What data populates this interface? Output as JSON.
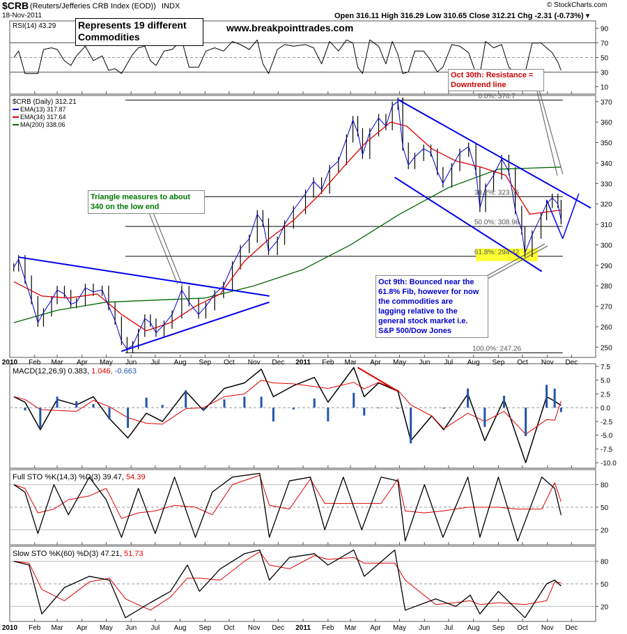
{
  "header": {
    "symbol": "$CRB",
    "name": "(Reuters/Jefferies CRB Index (EOD))",
    "exchange": "INDX",
    "date": "18-Nov-2011",
    "ohlc": "Open 316.11  High 316.29  Low 310.65  Close 312.21  Chg -2.31 (-0.73%) ▾",
    "brand": "© StockCharts.com"
  },
  "annotations": {
    "represents": "Represents 19 different\nCommodities",
    "site": "www.breakpointtrades.com",
    "oct30": "Oct 30th: Resistance =\nDowntrend line",
    "triangle": "Triangle measures to about\n340 on the low end",
    "oct9": "Oct 9th: Bounced near the\n61.8% Fib, however for now\nthe commodities are\nlagging relative to the\ngeneral stock market i.e.\nS&P 500/Dow Jones"
  },
  "colors": {
    "price_bar": "#000000",
    "ema13": "#0000cc",
    "ema34": "#dd0000",
    "ma200": "#006600",
    "trendline": "#0000ee",
    "macd_hist": "#2255aa",
    "fib_highlight": "#ffff33",
    "anno_green": "#007700",
    "anno_red": "#cc0000",
    "anno_blue": "#0000cc"
  },
  "chart_data": [
    {
      "type": "line",
      "panel": "RSI",
      "title": "RSI(14) 43.29",
      "ylim": [
        0,
        100
      ],
      "y_ticks": [
        "90",
        "70",
        "50",
        "30",
        "10"
      ],
      "reference_lines": [
        30,
        50,
        70
      ],
      "last_value": 43.29
    },
    {
      "type": "line",
      "panel": "Price",
      "title": "$CRB (Daily) 312.21",
      "ylim": [
        245,
        373
      ],
      "y_ticks": [
        "370",
        "360",
        "350",
        "340",
        "330",
        "320",
        "310",
        "300",
        "290",
        "280",
        "270",
        "260",
        "250"
      ],
      "x_ticks": [
        "2010",
        "Feb",
        "Mar",
        "Apr",
        "May",
        "Jun",
        "Jul",
        "Aug",
        "Sep",
        "Oct",
        "Nov",
        "Dec",
        "2011",
        "Feb",
        "Mar",
        "Apr",
        "May",
        "Jun",
        "Jul",
        "Aug",
        "Sep",
        "Oct",
        "Nov",
        "Dec"
      ],
      "x_start": "2010-01-01",
      "x_end": "2011-12-31",
      "legend": [
        {
          "name": "EMA(13) 317.87",
          "color": "#0000cc"
        },
        {
          "name": "EMA(34) 317.64",
          "color": "#dd0000"
        },
        {
          "name": "MA(200) 338.06",
          "color": "#006600"
        }
      ],
      "fib_levels": [
        {
          "label": "0.0%: 370.7",
          "value": 370.7
        },
        {
          "label": "38.2%: 323.55",
          "value": 323.55
        },
        {
          "label": "50.0%: 308.98",
          "value": 308.98
        },
        {
          "label": "61.8%: 294.42",
          "value": 294.42
        },
        {
          "label": "100.0%: 247.26",
          "value": 247.26
        }
      ],
      "closes": [
        {
          "x": "2010-01-06",
          "y": 289
        },
        {
          "x": "2010-01-12",
          "y": 293
        },
        {
          "x": "2010-01-20",
          "y": 283
        },
        {
          "x": "2010-01-28",
          "y": 273
        },
        {
          "x": "2010-02-05",
          "y": 262
        },
        {
          "x": "2010-02-12",
          "y": 267
        },
        {
          "x": "2010-02-22",
          "y": 273
        },
        {
          "x": "2010-03-01",
          "y": 278
        },
        {
          "x": "2010-03-10",
          "y": 276
        },
        {
          "x": "2010-03-18",
          "y": 271
        },
        {
          "x": "2010-03-25",
          "y": 272
        },
        {
          "x": "2010-04-05",
          "y": 279
        },
        {
          "x": "2010-04-15",
          "y": 277
        },
        {
          "x": "2010-04-26",
          "y": 278
        },
        {
          "x": "2010-05-04",
          "y": 270
        },
        {
          "x": "2010-05-12",
          "y": 263
        },
        {
          "x": "2010-05-20",
          "y": 253
        },
        {
          "x": "2010-05-27",
          "y": 249
        },
        {
          "x": "2010-06-03",
          "y": 251
        },
        {
          "x": "2010-06-10",
          "y": 257
        },
        {
          "x": "2010-06-18",
          "y": 264
        },
        {
          "x": "2010-06-25",
          "y": 262
        },
        {
          "x": "2010-07-02",
          "y": 257
        },
        {
          "x": "2010-07-12",
          "y": 261
        },
        {
          "x": "2010-07-22",
          "y": 266
        },
        {
          "x": "2010-08-03",
          "y": 278
        },
        {
          "x": "2010-08-12",
          "y": 272
        },
        {
          "x": "2010-08-24",
          "y": 266
        },
        {
          "x": "2010-09-02",
          "y": 270
        },
        {
          "x": "2010-09-13",
          "y": 276
        },
        {
          "x": "2010-09-24",
          "y": 280
        },
        {
          "x": "2010-10-05",
          "y": 290
        },
        {
          "x": "2010-10-15",
          "y": 298
        },
        {
          "x": "2010-10-26",
          "y": 303
        },
        {
          "x": "2010-11-05",
          "y": 315
        },
        {
          "x": "2010-11-12",
          "y": 311
        },
        {
          "x": "2010-11-19",
          "y": 297
        },
        {
          "x": "2010-11-30",
          "y": 302
        },
        {
          "x": "2010-12-09",
          "y": 310
        },
        {
          "x": "2010-12-20",
          "y": 317
        },
        {
          "x": "2011-01-04",
          "y": 325
        },
        {
          "x": "2011-01-14",
          "y": 331
        },
        {
          "x": "2011-01-24",
          "y": 327
        },
        {
          "x": "2011-02-03",
          "y": 337
        },
        {
          "x": "2011-02-14",
          "y": 341
        },
        {
          "x": "2011-02-24",
          "y": 352
        },
        {
          "x": "2011-03-04",
          "y": 361
        },
        {
          "x": "2011-03-10",
          "y": 355
        },
        {
          "x": "2011-03-16",
          "y": 344
        },
        {
          "x": "2011-03-25",
          "y": 355
        },
        {
          "x": "2011-04-05",
          "y": 362
        },
        {
          "x": "2011-04-14",
          "y": 358
        },
        {
          "x": "2011-04-22",
          "y": 368
        },
        {
          "x": "2011-04-29",
          "y": 370
        },
        {
          "x": "2011-05-05",
          "y": 348
        },
        {
          "x": "2011-05-12",
          "y": 339
        },
        {
          "x": "2011-05-20",
          "y": 343
        },
        {
          "x": "2011-05-31",
          "y": 347
        },
        {
          "x": "2011-06-09",
          "y": 345
        },
        {
          "x": "2011-06-17",
          "y": 336
        },
        {
          "x": "2011-06-24",
          "y": 330
        },
        {
          "x": "2011-07-05",
          "y": 338
        },
        {
          "x": "2011-07-15",
          "y": 345
        },
        {
          "x": "2011-07-26",
          "y": 348
        },
        {
          "x": "2011-08-04",
          "y": 336
        },
        {
          "x": "2011-08-09",
          "y": 318
        },
        {
          "x": "2011-08-16",
          "y": 328
        },
        {
          "x": "2011-08-26",
          "y": 334
        },
        {
          "x": "2011-09-05",
          "y": 342
        },
        {
          "x": "2011-09-14",
          "y": 336
        },
        {
          "x": "2011-09-22",
          "y": 317
        },
        {
          "x": "2011-09-30",
          "y": 307
        },
        {
          "x": "2011-10-04",
          "y": 296
        },
        {
          "x": "2011-10-13",
          "y": 305
        },
        {
          "x": "2011-10-24",
          "y": 314
        },
        {
          "x": "2011-10-31",
          "y": 320
        },
        {
          "x": "2011-11-07",
          "y": 323
        },
        {
          "x": "2011-11-14",
          "y": 320
        },
        {
          "x": "2011-11-18",
          "y": 312
        }
      ],
      "ema34": [
        {
          "x": "2010-01-06",
          "y": 282
        },
        {
          "x": "2010-02-10",
          "y": 275
        },
        {
          "x": "2010-03-15",
          "y": 274
        },
        {
          "x": "2010-04-20",
          "y": 276
        },
        {
          "x": "2010-05-20",
          "y": 266
        },
        {
          "x": "2010-06-20",
          "y": 258
        },
        {
          "x": "2010-07-20",
          "y": 262
        },
        {
          "x": "2010-08-20",
          "y": 270
        },
        {
          "x": "2010-09-20",
          "y": 276
        },
        {
          "x": "2010-10-20",
          "y": 292
        },
        {
          "x": "2010-11-20",
          "y": 303
        },
        {
          "x": "2010-12-20",
          "y": 312
        },
        {
          "x": "2011-01-20",
          "y": 324
        },
        {
          "x": "2011-02-20",
          "y": 338
        },
        {
          "x": "2011-03-20",
          "y": 350
        },
        {
          "x": "2011-04-20",
          "y": 360
        },
        {
          "x": "2011-05-10",
          "y": 358
        },
        {
          "x": "2011-06-10",
          "y": 347
        },
        {
          "x": "2011-07-10",
          "y": 341
        },
        {
          "x": "2011-08-10",
          "y": 338
        },
        {
          "x": "2011-09-10",
          "y": 334
        },
        {
          "x": "2011-10-10",
          "y": 315
        },
        {
          "x": "2011-11-18",
          "y": 317
        }
      ],
      "ma200": [
        {
          "x": "2010-01-06",
          "y": 262
        },
        {
          "x": "2010-03-01",
          "y": 268
        },
        {
          "x": "2010-05-01",
          "y": 272
        },
        {
          "x": "2010-07-01",
          "y": 273
        },
        {
          "x": "2010-09-01",
          "y": 274
        },
        {
          "x": "2010-11-01",
          "y": 280
        },
        {
          "x": "2011-01-01",
          "y": 288
        },
        {
          "x": "2011-03-01",
          "y": 300
        },
        {
          "x": "2011-05-01",
          "y": 315
        },
        {
          "x": "2011-07-01",
          "y": 328
        },
        {
          "x": "2011-09-01",
          "y": 337
        },
        {
          "x": "2011-11-18",
          "y": 338
        }
      ]
    },
    {
      "type": "line",
      "panel": "MACD",
      "title": "MACD(12,26,9)",
      "values_text": [
        "0.383",
        "1.046",
        "-0.663"
      ],
      "ylim": [
        -11,
        8
      ],
      "y_ticks": [
        "7.5",
        "5.0",
        "2.5",
        "0.0",
        "-2.5",
        "-5.0",
        "-7.5",
        "-10.0"
      ],
      "macd": [
        {
          "x": "2010-01-06",
          "y": 2.0
        },
        {
          "x": "2010-01-20",
          "y": 1.0
        },
        {
          "x": "2010-02-08",
          "y": -4.0
        },
        {
          "x": "2010-03-01",
          "y": 1.5
        },
        {
          "x": "2010-03-25",
          "y": 0.5
        },
        {
          "x": "2010-04-15",
          "y": 2.0
        },
        {
          "x": "2010-05-05",
          "y": -2.0
        },
        {
          "x": "2010-05-28",
          "y": -5.5
        },
        {
          "x": "2010-06-20",
          "y": -1.0
        },
        {
          "x": "2010-07-10",
          "y": -2.5
        },
        {
          "x": "2010-08-08",
          "y": 3.0
        },
        {
          "x": "2010-08-30",
          "y": -0.5
        },
        {
          "x": "2010-09-25",
          "y": 3.5
        },
        {
          "x": "2010-10-20",
          "y": 4.5
        },
        {
          "x": "2010-11-10",
          "y": 7.0
        },
        {
          "x": "2010-11-25",
          "y": 2.0
        },
        {
          "x": "2010-12-20",
          "y": 4.0
        },
        {
          "x": "2011-01-15",
          "y": 5.5
        },
        {
          "x": "2011-02-01",
          "y": 1.0
        },
        {
          "x": "2011-03-05",
          "y": 7.3
        },
        {
          "x": "2011-03-18",
          "y": 2.0
        },
        {
          "x": "2011-04-05",
          "y": 4.5
        },
        {
          "x": "2011-04-29",
          "y": 3.0
        },
        {
          "x": "2011-05-15",
          "y": -6.0
        },
        {
          "x": "2011-06-10",
          "y": -1.5
        },
        {
          "x": "2011-06-25",
          "y": -4.0
        },
        {
          "x": "2011-07-25",
          "y": 2.5
        },
        {
          "x": "2011-08-15",
          "y": -6.0
        },
        {
          "x": "2011-09-08",
          "y": 1.5
        },
        {
          "x": "2011-10-05",
          "y": -10.0
        },
        {
          "x": "2011-10-31",
          "y": 2.0
        },
        {
          "x": "2011-11-10",
          "y": 1.2
        },
        {
          "x": "2011-11-18",
          "y": 0.4
        }
      ]
    },
    {
      "type": "line",
      "panel": "Full STO",
      "title": "Full STO %K(14,3) %D(3)",
      "values_text": [
        "39.47",
        "54.39"
      ],
      "ylim": [
        0,
        100
      ],
      "y_ticks": [
        "80",
        "50",
        "20"
      ],
      "k": [
        {
          "x": "2010-01-06",
          "y": 80
        },
        {
          "x": "2010-01-20",
          "y": 70
        },
        {
          "x": "2010-02-05",
          "y": 15
        },
        {
          "x": "2010-02-25",
          "y": 80
        },
        {
          "x": "2010-03-15",
          "y": 40
        },
        {
          "x": "2010-04-10",
          "y": 90
        },
        {
          "x": "2010-05-01",
          "y": 60
        },
        {
          "x": "2010-05-20",
          "y": 10
        },
        {
          "x": "2010-06-10",
          "y": 75
        },
        {
          "x": "2010-07-01",
          "y": 15
        },
        {
          "x": "2010-07-25",
          "y": 90
        },
        {
          "x": "2010-08-20",
          "y": 10
        },
        {
          "x": "2010-09-10",
          "y": 70
        },
        {
          "x": "2010-10-05",
          "y": 90
        },
        {
          "x": "2010-11-08",
          "y": 95
        },
        {
          "x": "2010-11-20",
          "y": 10
        },
        {
          "x": "2010-12-15",
          "y": 85
        },
        {
          "x": "2011-01-10",
          "y": 90
        },
        {
          "x": "2011-01-28",
          "y": 20
        },
        {
          "x": "2011-02-20",
          "y": 90
        },
        {
          "x": "2011-03-15",
          "y": 20
        },
        {
          "x": "2011-04-08",
          "y": 90
        },
        {
          "x": "2011-04-29",
          "y": 85
        },
        {
          "x": "2011-05-08",
          "y": 5
        },
        {
          "x": "2011-06-01",
          "y": 80
        },
        {
          "x": "2011-06-24",
          "y": 10
        },
        {
          "x": "2011-07-25",
          "y": 90
        },
        {
          "x": "2011-08-09",
          "y": 10
        },
        {
          "x": "2011-09-01",
          "y": 90
        },
        {
          "x": "2011-09-25",
          "y": 5
        },
        {
          "x": "2011-10-25",
          "y": 90
        },
        {
          "x": "2011-11-10",
          "y": 75
        },
        {
          "x": "2011-11-18",
          "y": 39.47
        }
      ]
    },
    {
      "type": "line",
      "panel": "Slow STO",
      "title": "Slow STO %K(60) %D(3)",
      "values_text": [
        "47.21",
        "51.73"
      ],
      "ylim": [
        0,
        100
      ],
      "y_ticks": [
        "80",
        "50",
        "20"
      ],
      "k": [
        {
          "x": "2010-01-06",
          "y": 80
        },
        {
          "x": "2010-01-25",
          "y": 75
        },
        {
          "x": "2010-02-10",
          "y": 10
        },
        {
          "x": "2010-03-10",
          "y": 45
        },
        {
          "x": "2010-04-10",
          "y": 60
        },
        {
          "x": "2010-05-05",
          "y": 55
        },
        {
          "x": "2010-05-25",
          "y": 5
        },
        {
          "x": "2010-06-25",
          "y": 25
        },
        {
          "x": "2010-07-20",
          "y": 40
        },
        {
          "x": "2010-08-10",
          "y": 75
        },
        {
          "x": "2010-08-25",
          "y": 40
        },
        {
          "x": "2010-09-20",
          "y": 70
        },
        {
          "x": "2010-10-20",
          "y": 90
        },
        {
          "x": "2010-11-08",
          "y": 95
        },
        {
          "x": "2010-11-20",
          "y": 55
        },
        {
          "x": "2010-12-15",
          "y": 85
        },
        {
          "x": "2011-01-15",
          "y": 90
        },
        {
          "x": "2011-02-01",
          "y": 75
        },
        {
          "x": "2011-03-05",
          "y": 95
        },
        {
          "x": "2011-03-18",
          "y": 60
        },
        {
          "x": "2011-04-25",
          "y": 95
        },
        {
          "x": "2011-05-08",
          "y": 15
        },
        {
          "x": "2011-06-15",
          "y": 30
        },
        {
          "x": "2011-07-10",
          "y": 20
        },
        {
          "x": "2011-07-28",
          "y": 35
        },
        {
          "x": "2011-08-09",
          "y": 10
        },
        {
          "x": "2011-09-01",
          "y": 40
        },
        {
          "x": "2011-10-04",
          "y": 5
        },
        {
          "x": "2011-10-31",
          "y": 50
        },
        {
          "x": "2011-11-10",
          "y": 55
        },
        {
          "x": "2011-11-18",
          "y": 47.21
        }
      ]
    }
  ]
}
